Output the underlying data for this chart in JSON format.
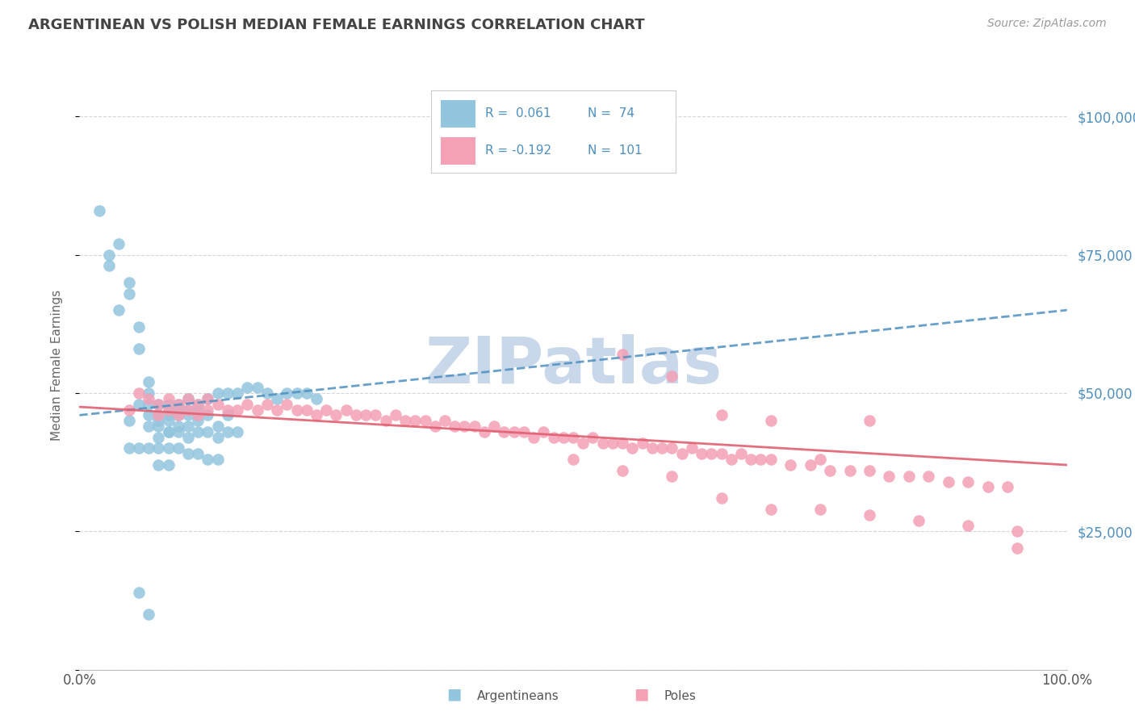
{
  "title": "ARGENTINEAN VS POLISH MEDIAN FEMALE EARNINGS CORRELATION CHART",
  "source_text": "Source: ZipAtlas.com",
  "ylabel": "Median Female Earnings",
  "xlim": [
    0,
    1
  ],
  "ylim": [
    0,
    110000
  ],
  "yticks": [
    0,
    25000,
    50000,
    75000,
    100000
  ],
  "ytick_labels": [
    "",
    "$25,000",
    "$50,000",
    "$75,000",
    "$100,000"
  ],
  "xtick_labels": [
    "0.0%",
    "100.0%"
  ],
  "color_blue": "#92c5de",
  "color_pink": "#f4a0b5",
  "color_blue_line": "#4e8fc0",
  "color_pink_line": "#e06070",
  "color_axis_label": "#4e8fc0",
  "watermark_color": "#c8d8ea",
  "background_color": "#ffffff",
  "grid_color": "#cccccc",
  "arg_x": [
    0.02,
    0.03,
    0.04,
    0.05,
    0.05,
    0.06,
    0.06,
    0.07,
    0.07,
    0.07,
    0.07,
    0.08,
    0.08,
    0.08,
    0.08,
    0.09,
    0.09,
    0.09,
    0.09,
    0.09,
    0.1,
    0.1,
    0.1,
    0.1,
    0.11,
    0.11,
    0.11,
    0.11,
    0.12,
    0.12,
    0.12,
    0.13,
    0.13,
    0.14,
    0.14,
    0.15,
    0.15,
    0.16,
    0.17,
    0.18,
    0.19,
    0.2,
    0.21,
    0.22,
    0.23,
    0.24,
    0.03,
    0.04,
    0.05,
    0.06,
    0.07,
    0.08,
    0.09,
    0.1,
    0.11,
    0.12,
    0.13,
    0.14,
    0.15,
    0.16,
    0.05,
    0.06,
    0.07,
    0.08,
    0.09,
    0.1,
    0.11,
    0.12,
    0.13,
    0.14,
    0.06,
    0.07,
    0.08,
    0.09
  ],
  "arg_y": [
    83000,
    75000,
    77000,
    70000,
    68000,
    62000,
    58000,
    52000,
    48000,
    46000,
    44000,
    48000,
    46000,
    44000,
    42000,
    48000,
    47000,
    46000,
    45000,
    43000,
    48000,
    47000,
    46000,
    44000,
    49000,
    47000,
    46000,
    44000,
    48000,
    47000,
    45000,
    49000,
    46000,
    50000,
    44000,
    50000,
    46000,
    50000,
    51000,
    51000,
    50000,
    49000,
    50000,
    50000,
    50000,
    49000,
    73000,
    65000,
    45000,
    48000,
    50000,
    45000,
    43000,
    43000,
    42000,
    43000,
    43000,
    42000,
    43000,
    43000,
    40000,
    40000,
    40000,
    40000,
    40000,
    40000,
    39000,
    39000,
    38000,
    38000,
    14000,
    10000,
    37000,
    37000
  ],
  "pol_x": [
    0.05,
    0.06,
    0.07,
    0.08,
    0.08,
    0.09,
    0.09,
    0.1,
    0.1,
    0.11,
    0.11,
    0.12,
    0.12,
    0.13,
    0.13,
    0.14,
    0.15,
    0.16,
    0.17,
    0.18,
    0.19,
    0.2,
    0.21,
    0.22,
    0.23,
    0.24,
    0.25,
    0.26,
    0.27,
    0.28,
    0.29,
    0.3,
    0.31,
    0.32,
    0.33,
    0.34,
    0.35,
    0.36,
    0.37,
    0.38,
    0.39,
    0.4,
    0.41,
    0.42,
    0.43,
    0.44,
    0.45,
    0.46,
    0.47,
    0.48,
    0.49,
    0.5,
    0.51,
    0.52,
    0.53,
    0.54,
    0.55,
    0.56,
    0.57,
    0.58,
    0.59,
    0.6,
    0.61,
    0.62,
    0.63,
    0.64,
    0.65,
    0.66,
    0.67,
    0.68,
    0.69,
    0.7,
    0.72,
    0.74,
    0.76,
    0.78,
    0.8,
    0.82,
    0.84,
    0.86,
    0.88,
    0.9,
    0.92,
    0.94,
    0.55,
    0.6,
    0.65,
    0.7,
    0.75,
    0.8,
    0.5,
    0.55,
    0.6,
    0.65,
    0.7,
    0.75,
    0.8,
    0.85,
    0.9,
    0.95,
    0.95
  ],
  "pol_y": [
    47000,
    50000,
    49000,
    48000,
    46000,
    49000,
    47000,
    48000,
    46000,
    49000,
    47000,
    48000,
    46000,
    49000,
    47000,
    48000,
    47000,
    47000,
    48000,
    47000,
    48000,
    47000,
    48000,
    47000,
    47000,
    46000,
    47000,
    46000,
    47000,
    46000,
    46000,
    46000,
    45000,
    46000,
    45000,
    45000,
    45000,
    44000,
    45000,
    44000,
    44000,
    44000,
    43000,
    44000,
    43000,
    43000,
    43000,
    42000,
    43000,
    42000,
    42000,
    42000,
    41000,
    42000,
    41000,
    41000,
    41000,
    40000,
    41000,
    40000,
    40000,
    40000,
    39000,
    40000,
    39000,
    39000,
    39000,
    38000,
    39000,
    38000,
    38000,
    38000,
    37000,
    37000,
    36000,
    36000,
    36000,
    35000,
    35000,
    35000,
    34000,
    34000,
    33000,
    33000,
    57000,
    53000,
    46000,
    45000,
    38000,
    45000,
    38000,
    36000,
    35000,
    31000,
    29000,
    29000,
    28000,
    27000,
    26000,
    25000,
    22000
  ]
}
